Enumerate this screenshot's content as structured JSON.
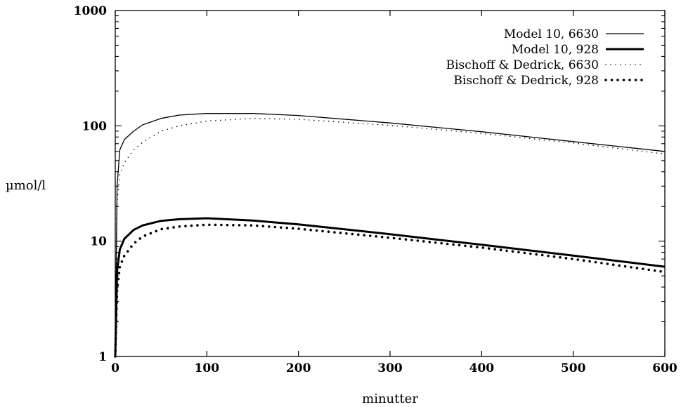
{
  "chart_data": {
    "type": "line",
    "title": "",
    "xlabel": "minutter",
    "ylabel": "µmol/l",
    "xlim": [
      0,
      600
    ],
    "ylim": [
      1,
      1000
    ],
    "yscale": "log",
    "grid": false,
    "legend_position": "top-right",
    "xticks": [
      0,
      100,
      200,
      300,
      400,
      500,
      600
    ],
    "xtick_labels": [
      "0",
      "100",
      "200",
      "300",
      "400",
      "500",
      "600"
    ],
    "yticks": [
      1,
      10,
      100,
      1000
    ],
    "ytick_labels": [
      "1",
      "10",
      "100",
      "1000"
    ],
    "series": [
      {
        "name": "Model 10, 6630",
        "style": "thin-solid",
        "x": [
          0,
          2,
          5,
          10,
          20,
          30,
          50,
          70,
          100,
          150,
          200,
          300,
          400,
          500,
          600
        ],
        "y": [
          1,
          30,
          62,
          76,
          90,
          102,
          116,
          124,
          128,
          128,
          123,
          106,
          89,
          73,
          60
        ]
      },
      {
        "name": "Model 10, 928",
        "style": "thick-solid",
        "x": [
          0,
          2,
          5,
          10,
          20,
          30,
          50,
          70,
          100,
          150,
          200,
          300,
          400,
          500,
          600
        ],
        "y": [
          1,
          5.5,
          8.5,
          10.5,
          12.5,
          13.7,
          15,
          15.5,
          15.8,
          15.1,
          14,
          11.5,
          9.3,
          7.5,
          6
        ]
      },
      {
        "name": "Bischoff & Dedrick, 6630",
        "style": "thin-dotted",
        "x": [
          0,
          2,
          5,
          10,
          20,
          30,
          50,
          70,
          100,
          150,
          200,
          300,
          400,
          500,
          600
        ],
        "y": [
          1,
          22,
          38,
          48,
          62,
          72,
          90,
          100,
          110,
          116,
          114,
          101,
          86,
          71,
          57
        ]
      },
      {
        "name": "Bischoff & Dedrick, 928",
        "style": "thick-dotted",
        "x": [
          0,
          2,
          5,
          10,
          20,
          30,
          50,
          70,
          100,
          150,
          200,
          300,
          400,
          500,
          600
        ],
        "y": [
          1,
          3.8,
          6,
          7.5,
          9.5,
          11,
          12.7,
          13.4,
          13.9,
          13.7,
          12.8,
          10.7,
          8.8,
          7,
          5.4
        ]
      }
    ]
  }
}
